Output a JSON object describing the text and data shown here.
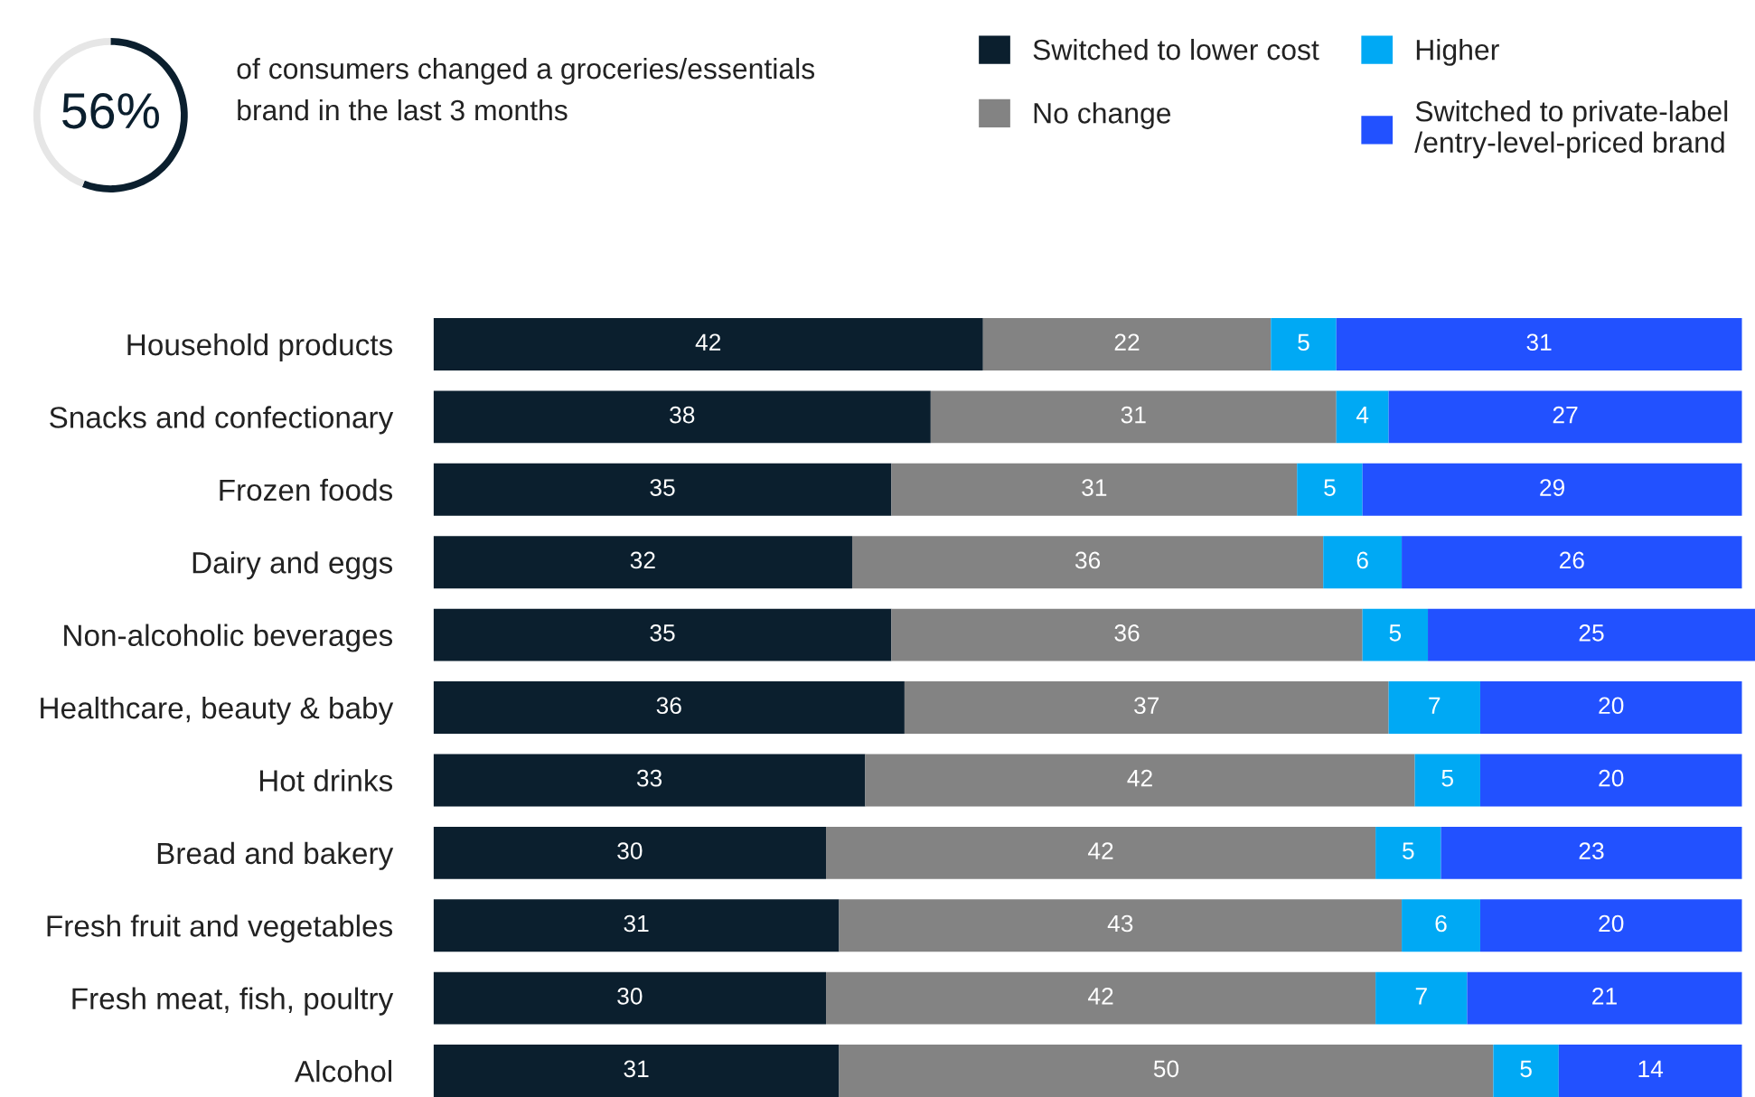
{
  "chart_data": [
    {
      "type": "donut",
      "title": "of consumers changed a groceries/essentials\nbrand in the last 3 months",
      "categories": [
        null,
        null
      ],
      "values": [
        56,
        44
      ],
      "colors": [
        "#0b1f2e",
        "#e6e6e6"
      ],
      "value_labels": [
        "56%",
        null
      ]
    },
    {
      "type": "bar",
      "orientation": "horizontal",
      "stacked": true,
      "data_labels": true,
      "legend": "top right",
      "categories": [
        "Household products",
        "Snacks and confectionary",
        "Frozen foods",
        "Dairy and eggs",
        "Non-alcoholic beverages",
        "Healthcare, beauty & baby",
        "Hot drinks",
        "Bread and bakery",
        "Fresh fruit and vegetables",
        "Fresh meat, fish, poultry",
        "Alcohol"
      ],
      "series": [
        {
          "name": "Switched to lower cost",
          "color": "#0b1f2e",
          "values": [
            42,
            38,
            35,
            32,
            35,
            36,
            33,
            30,
            31,
            30,
            31
          ]
        },
        {
          "name": "No change",
          "color": "#838383",
          "values": [
            22,
            31,
            31,
            36,
            36,
            37,
            42,
            42,
            43,
            42,
            50
          ]
        },
        {
          "name": "Higher",
          "color": "#00a9f4",
          "values": [
            5,
            4,
            5,
            6,
            5,
            7,
            5,
            5,
            6,
            7,
            5
          ]
        },
        {
          "name": "Switched to private-label\n/entry-level-priced brand",
          "color": "#2251ff",
          "values": [
            31,
            27,
            29,
            26,
            25,
            20,
            20,
            23,
            20,
            21,
            14
          ]
        }
      ]
    }
  ]
}
